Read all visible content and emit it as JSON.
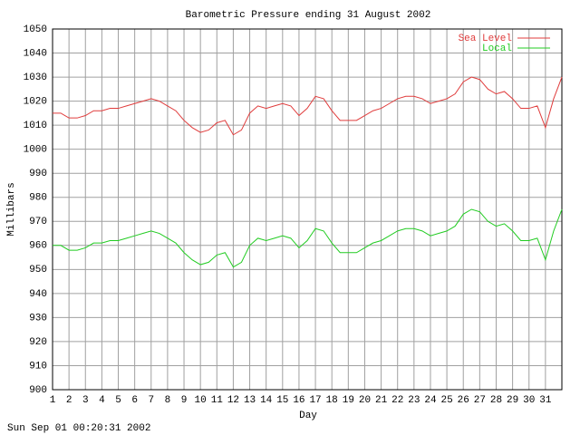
{
  "chart_data": {
    "type": "line",
    "title": "Barometric Pressure ending 31 August 2002",
    "x_label": "Day",
    "y_label": "Millibars",
    "footer": "Sun Sep 01 00:20:31 2002",
    "x": [
      1,
      1.5,
      2,
      2.5,
      3,
      3.5,
      4,
      4.5,
      5,
      5.5,
      6,
      6.5,
      7,
      7.5,
      8,
      8.5,
      9,
      9.5,
      10,
      10.5,
      11,
      11.5,
      12,
      12.5,
      13,
      13.5,
      14,
      14.5,
      15,
      15.5,
      16,
      16.5,
      17,
      17.5,
      18,
      18.5,
      19,
      19.5,
      20,
      20.5,
      21,
      21.5,
      22,
      22.5,
      23,
      23.5,
      24,
      24.5,
      25,
      25.5,
      26,
      26.5,
      27,
      27.5,
      28,
      28.5,
      29,
      29.5,
      30,
      30.5,
      31,
      31.5,
      32
    ],
    "series": [
      {
        "name": "Sea Level",
        "color": "#e03c3c",
        "values": [
          1015,
          1015,
          1013,
          1013,
          1014,
          1016,
          1016,
          1017,
          1017,
          1018,
          1019,
          1020,
          1021,
          1020,
          1018,
          1016,
          1012,
          1009,
          1007,
          1008,
          1011,
          1012,
          1006,
          1008,
          1015,
          1018,
          1017,
          1018,
          1019,
          1018,
          1014,
          1017,
          1022,
          1021,
          1016,
          1012,
          1012,
          1012,
          1014,
          1016,
          1017,
          1019,
          1021,
          1022,
          1022,
          1021,
          1019,
          1020,
          1021,
          1023,
          1028,
          1030,
          1029,
          1025,
          1023,
          1024,
          1021,
          1017,
          1017,
          1018,
          1009,
          1021,
          1030
        ]
      },
      {
        "name": "Local",
        "color": "#22cc22",
        "values": [
          960,
          960,
          958,
          958,
          959,
          961,
          961,
          962,
          962,
          963,
          964,
          965,
          966,
          965,
          963,
          961,
          957,
          954,
          952,
          953,
          956,
          957,
          951,
          953,
          960,
          963,
          962,
          963,
          964,
          963,
          959,
          962,
          967,
          966,
          961,
          957,
          957,
          957,
          959,
          961,
          962,
          964,
          966,
          967,
          967,
          966,
          964,
          965,
          966,
          968,
          973,
          975,
          974,
          970,
          968,
          969,
          966,
          962,
          962,
          963,
          954,
          966,
          975
        ]
      }
    ],
    "xlim": [
      1,
      32
    ],
    "xticks": [
      1,
      2,
      3,
      4,
      5,
      6,
      7,
      8,
      9,
      10,
      11,
      12,
      13,
      14,
      15,
      16,
      17,
      18,
      19,
      20,
      21,
      22,
      23,
      24,
      25,
      26,
      27,
      28,
      29,
      30,
      31
    ],
    "ylim": [
      900,
      1050
    ],
    "yticks": [
      900,
      910,
      920,
      930,
      940,
      950,
      960,
      970,
      980,
      990,
      1000,
      1010,
      1020,
      1030,
      1040,
      1050
    ],
    "grid": true,
    "legend": "top-right"
  }
}
